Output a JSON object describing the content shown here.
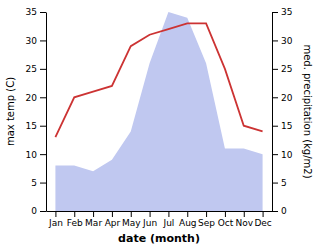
{
  "chart_data": {
    "type": "line",
    "categories": [
      "Jan",
      "Feb",
      "Mar",
      "Apr",
      "May",
      "Jun",
      "Jul",
      "Aug",
      "Sep",
      "Oct",
      "Nov",
      "Dec"
    ],
    "series": [
      {
        "type": "area",
        "axis": "y2",
        "color": "#c0c8f0",
        "values": [
          8,
          8,
          7,
          9,
          14,
          26,
          35,
          34,
          26,
          11,
          11,
          10
        ]
      },
      {
        "type": "line",
        "color": "#cc3333",
        "values": [
          13,
          20,
          21,
          22,
          29,
          31,
          32,
          33,
          33,
          25,
          15,
          14
        ]
      }
    ],
    "xlabel": "date (month)",
    "ylabel": "max temp (C)",
    "y2label": "med. precipitation (kg/m2)",
    "ylim": [
      0,
      35
    ],
    "yticks": [
      0,
      5,
      10,
      15,
      20,
      25,
      30,
      35
    ],
    "y2lim": [
      0,
      35
    ],
    "y2ticks": [
      0,
      5,
      10,
      15,
      20,
      25,
      30,
      35
    ],
    "grid": false
  }
}
